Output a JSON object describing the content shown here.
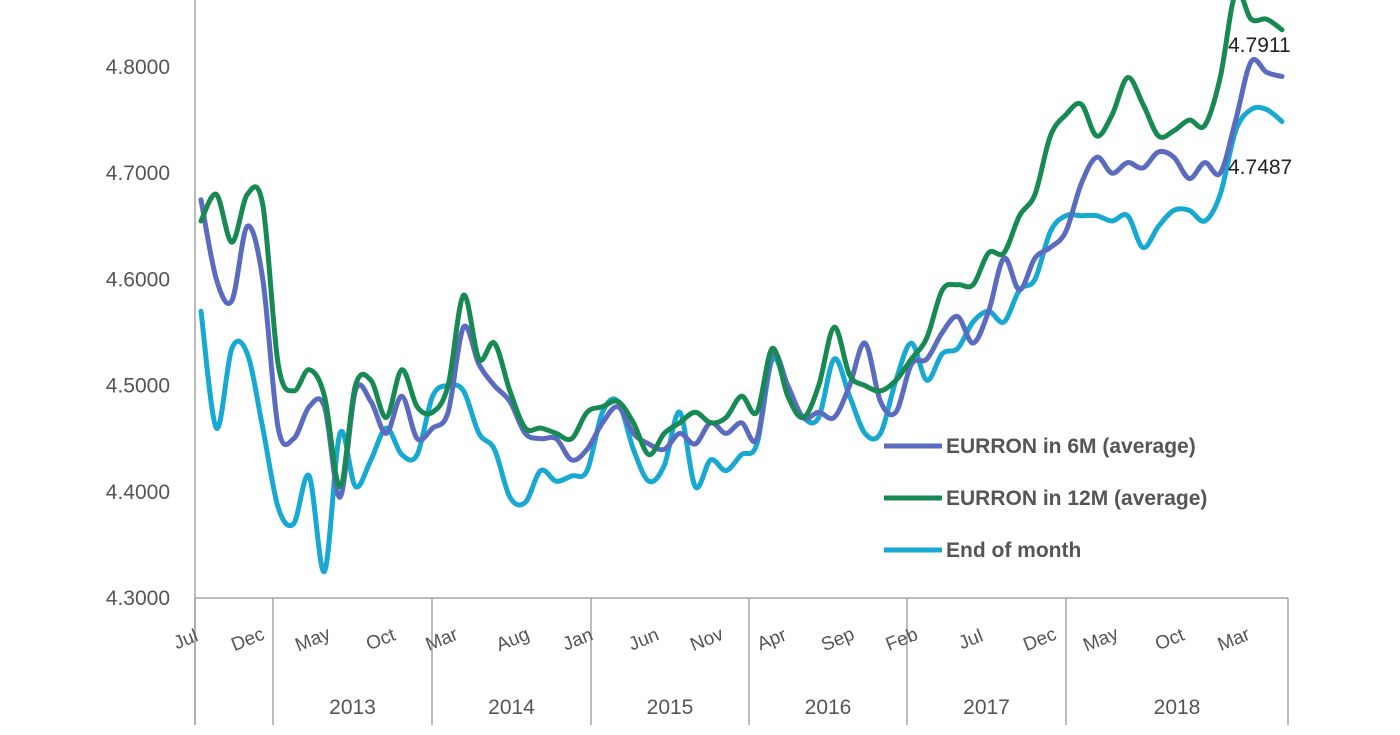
{
  "chart_data": {
    "type": "line",
    "x_months": [
      "Jul",
      "Dec",
      "May",
      "Oct",
      "Mar",
      "Aug",
      "Jan",
      "Jun",
      "Nov",
      "Apr",
      "Sep",
      "Feb",
      "Jul",
      "Dec",
      "May",
      "Oct",
      "Mar"
    ],
    "years": [
      "2013",
      "2014",
      "2015",
      "2016",
      "2017",
      "2018"
    ],
    "y_ticks": [
      "4.8000",
      "4.7000",
      "4.6000",
      "4.5000",
      "4.4000",
      "4.3000"
    ],
    "ylim": [
      4.3,
      4.8
    ],
    "grid": false,
    "legend_position": "right-inside",
    "x": [
      "2012-07",
      "2012-08",
      "2012-09",
      "2012-10",
      "2012-11",
      "2012-12",
      "2013-01",
      "2013-02",
      "2013-03",
      "2013-04",
      "2013-05",
      "2013-06",
      "2013-07",
      "2013-08",
      "2013-09",
      "2013-10",
      "2013-11",
      "2013-12",
      "2014-01",
      "2014-02",
      "2014-03",
      "2014-04",
      "2014-05",
      "2014-06",
      "2014-07",
      "2014-08",
      "2014-09",
      "2014-10",
      "2014-11",
      "2014-12",
      "2015-01",
      "2015-02",
      "2015-03",
      "2015-04",
      "2015-05",
      "2015-06",
      "2015-07",
      "2015-08",
      "2015-09",
      "2015-10",
      "2015-11",
      "2015-12",
      "2016-01",
      "2016-02",
      "2016-03",
      "2016-04",
      "2016-05",
      "2016-06",
      "2016-07",
      "2016-08",
      "2016-09",
      "2016-10",
      "2016-11",
      "2016-12",
      "2017-01",
      "2017-02",
      "2017-03",
      "2017-04",
      "2017-05",
      "2017-06",
      "2017-07",
      "2017-08",
      "2017-09",
      "2017-10",
      "2017-11",
      "2017-12",
      "2018-01",
      "2018-02",
      "2018-03",
      "2018-04",
      "2018-05"
    ],
    "series": [
      {
        "name": "EURRON in 6M (average)",
        "color": "#5b6bbf",
        "values": [
          4.675,
          4.6,
          4.58,
          4.65,
          4.6,
          4.46,
          4.45,
          4.48,
          4.48,
          4.395,
          4.495,
          4.485,
          4.455,
          4.49,
          4.45,
          4.46,
          4.475,
          4.555,
          4.52,
          4.5,
          4.485,
          4.455,
          4.45,
          4.45,
          4.43,
          4.44,
          4.465,
          4.48,
          4.455,
          4.445,
          4.44,
          4.455,
          4.445,
          4.465,
          4.455,
          4.465,
          4.45,
          4.53,
          4.5,
          4.47,
          4.475,
          4.47,
          4.5,
          4.54,
          4.485,
          4.475,
          4.52,
          4.525,
          4.55,
          4.565,
          4.54,
          4.57,
          4.62,
          4.59,
          4.62,
          4.63,
          4.645,
          4.69,
          4.715,
          4.7,
          4.71,
          4.705,
          4.72,
          4.715,
          4.695,
          4.71,
          4.7,
          4.75,
          4.805,
          4.795,
          4.7911
        ]
      },
      {
        "name": "EURRON in 12M (average)",
        "color": "#168a52",
        "values": [
          4.655,
          4.68,
          4.635,
          4.68,
          4.67,
          4.52,
          4.495,
          4.515,
          4.49,
          4.405,
          4.5,
          4.505,
          4.47,
          4.515,
          4.48,
          4.475,
          4.5,
          4.585,
          4.525,
          4.54,
          4.495,
          4.46,
          4.46,
          4.455,
          4.45,
          4.475,
          4.48,
          4.485,
          4.465,
          4.435,
          4.455,
          4.465,
          4.475,
          4.465,
          4.47,
          4.49,
          4.475,
          4.535,
          4.49,
          4.47,
          4.5,
          4.555,
          4.51,
          4.5,
          4.495,
          4.505,
          4.525,
          4.545,
          4.59,
          4.595,
          4.595,
          4.625,
          4.625,
          4.66,
          4.68,
          4.735,
          4.755,
          4.765,
          4.735,
          4.755,
          4.79,
          4.765,
          4.735,
          4.74,
          4.75,
          4.745,
          4.79,
          4.87,
          4.845,
          4.845,
          4.835
        ]
      },
      {
        "name": "End of month",
        "color": "#17a9d1",
        "values": [
          4.57,
          4.46,
          4.535,
          4.53,
          4.46,
          4.385,
          4.37,
          4.415,
          4.325,
          4.455,
          4.405,
          4.43,
          4.46,
          4.435,
          4.435,
          4.49,
          4.5,
          4.495,
          4.455,
          4.44,
          4.395,
          4.39,
          4.42,
          4.41,
          4.415,
          4.42,
          4.475,
          4.485,
          4.44,
          4.41,
          4.425,
          4.475,
          4.405,
          4.43,
          4.42,
          4.435,
          4.445,
          4.525,
          4.495,
          4.47,
          4.47,
          4.525,
          4.49,
          4.455,
          4.455,
          4.505,
          4.54,
          4.505,
          4.53,
          4.535,
          4.56,
          4.57,
          4.56,
          4.59,
          4.6,
          4.645,
          4.66,
          4.66,
          4.66,
          4.655,
          4.66,
          4.63,
          4.65,
          4.665,
          4.665,
          4.655,
          4.68,
          4.74,
          4.76,
          4.76,
          4.7487
        ]
      }
    ],
    "data_labels": [
      {
        "text": "4.7911",
        "series": 0
      },
      {
        "text": "4.7487",
        "series": 2
      }
    ]
  }
}
